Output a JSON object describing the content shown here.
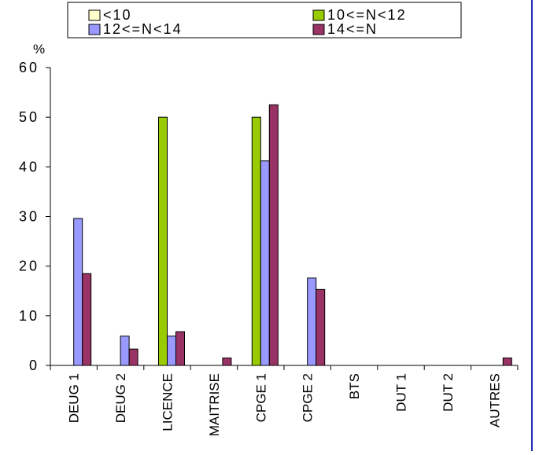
{
  "chart_data": {
    "type": "bar",
    "ylabel": "%",
    "ylim": [
      0,
      60
    ],
    "yticks": [
      0,
      10,
      20,
      30,
      40,
      50,
      60
    ],
    "grid": false,
    "legend_position": "top",
    "categories": [
      "DEUG 1",
      "DEUG 2",
      "LICENCE",
      "MAITRISE",
      "CPGE 1",
      "CPGE 2",
      "BTS",
      "DUT 1",
      "DUT 2",
      "AUTRES"
    ],
    "series": [
      {
        "name": "<10",
        "color": "#ffffcc",
        "values": [
          0,
          0,
          0,
          0,
          0,
          0,
          0,
          0,
          0,
          0
        ]
      },
      {
        "name": "10<=N<12",
        "color": "#99cc00",
        "values": [
          0,
          0,
          50,
          0,
          50,
          0,
          0,
          0,
          0,
          0
        ]
      },
      {
        "name": "12<=N<14",
        "color": "#9999ff",
        "values": [
          29.6,
          5.9,
          5.9,
          0,
          41.2,
          17.6,
          0,
          0,
          0,
          0
        ]
      },
      {
        "name": "14<=N",
        "color": "#993366",
        "values": [
          18.5,
          3.3,
          6.8,
          1.5,
          52.5,
          15.3,
          0,
          0,
          0,
          1.5
        ]
      }
    ]
  },
  "legend": {
    "item0": "<10",
    "item1": "10<=N<12",
    "item2": "12<=N<14",
    "item3": "14<=N"
  }
}
